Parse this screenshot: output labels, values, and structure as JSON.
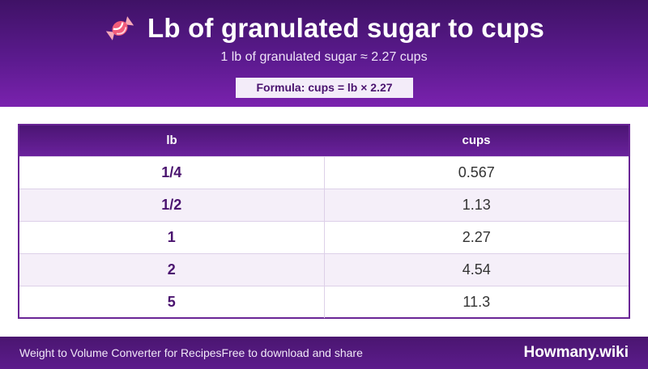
{
  "header": {
    "icon": "candy-icon",
    "title": "Lb of granulated sugar to cups",
    "subtitle": "1 lb of granulated sugar ≈ 2.27 cups",
    "formula": "Formula: cups = lb × 2.27"
  },
  "table": {
    "columns": [
      "lb",
      "cups"
    ],
    "rows": [
      {
        "lb": "1/4",
        "cups": "0.567"
      },
      {
        "lb": "1/2",
        "cups": "1.13"
      },
      {
        "lb": "1",
        "cups": "2.27"
      },
      {
        "lb": "2",
        "cups": "4.54"
      },
      {
        "lb": "5",
        "cups": "11.3"
      }
    ]
  },
  "footer": {
    "app_name": "Weight to Volume Converter for Recipes",
    "tagline": "Free to download and share",
    "brand": "Howmany.wiki"
  },
  "colors": {
    "header_dark": "#3f1266",
    "header_light": "#7a22ae",
    "accent_text": "#4a136f",
    "row_alt": "#f5eff9"
  }
}
